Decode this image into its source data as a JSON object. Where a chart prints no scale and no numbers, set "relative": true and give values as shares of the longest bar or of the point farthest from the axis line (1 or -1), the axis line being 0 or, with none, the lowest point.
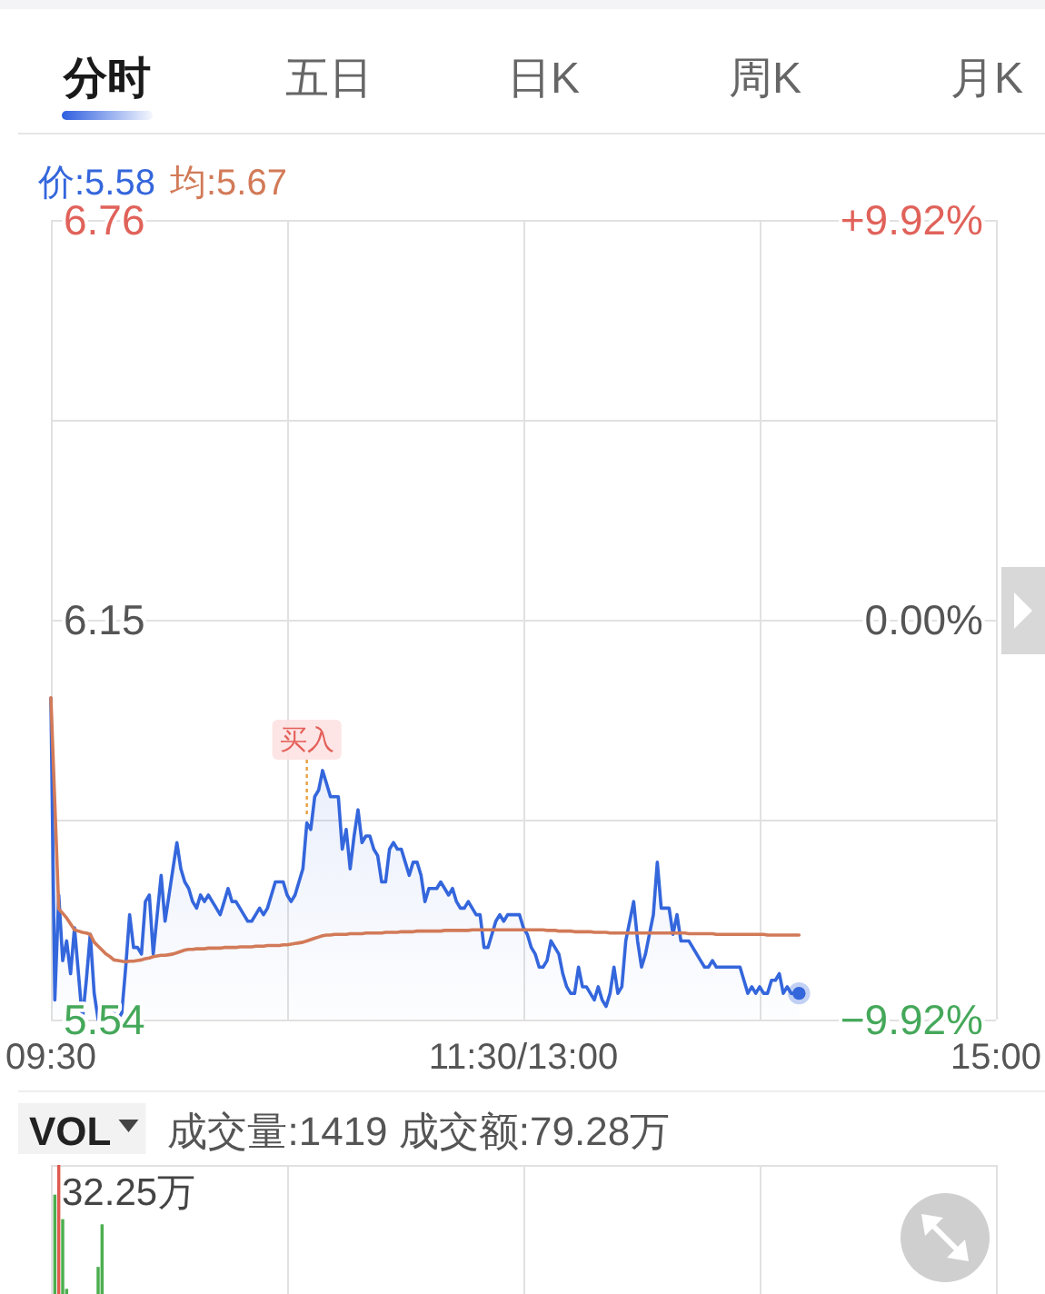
{
  "chart_data": [
    {
      "type": "line",
      "annotations": [
        "分时",
        "五日",
        "日K",
        "周K",
        "月K",
        {
          "text": "买入",
          "y": 5.84
        }
      ],
      "categories": [
        "09:30",
        null,
        null,
        null,
        null,
        null,
        null,
        null,
        null,
        null,
        null,
        null,
        null,
        null,
        null,
        null,
        null,
        null,
        null,
        null,
        null,
        null,
        null,
        null,
        null,
        null,
        null,
        null,
        null,
        null,
        null,
        null,
        null,
        null,
        null,
        null,
        null,
        null,
        null,
        null,
        null,
        null,
        null,
        null,
        null,
        null,
        null,
        null,
        null,
        null,
        null,
        null,
        null,
        null,
        null,
        null,
        null,
        null,
        null,
        null,
        null,
        null,
        null,
        null,
        null,
        null,
        null,
        null,
        null,
        null,
        null,
        null,
        null,
        null,
        null,
        null,
        null,
        null,
        null,
        null,
        null,
        null,
        null,
        null,
        null,
        null,
        null,
        null,
        null,
        null,
        null,
        null,
        null,
        null,
        null,
        null,
        null,
        null,
        null,
        null,
        null,
        null,
        null,
        null,
        null,
        null,
        null,
        null,
        null,
        null,
        null,
        null,
        null,
        null,
        null,
        null,
        null,
        null,
        null,
        null,
        "11:30/13:00",
        null,
        null,
        null,
        null,
        null,
        null,
        null,
        null,
        null,
        null,
        null,
        null,
        null,
        null,
        null,
        null,
        null,
        null,
        null,
        null,
        null,
        null,
        null,
        null,
        null,
        null,
        null,
        null,
        null,
        null,
        null,
        null,
        null,
        null,
        null,
        null,
        null,
        null,
        null,
        null,
        null,
        null,
        null,
        null,
        null,
        null,
        null,
        null,
        null,
        null,
        null,
        null,
        null,
        null,
        null,
        null,
        null,
        null,
        null,
        null,
        null,
        null,
        null,
        null,
        null,
        null,
        null,
        null,
        null,
        null,
        null,
        null,
        null,
        null,
        null,
        null,
        null,
        null,
        null,
        null,
        null,
        null,
        null,
        null,
        null,
        null,
        null,
        null,
        null,
        null,
        null,
        null,
        null,
        null,
        null,
        null,
        null,
        null,
        null,
        null,
        null,
        null,
        null,
        null,
        null,
        null,
        null,
        null,
        null,
        null,
        null,
        null,
        null,
        null,
        null,
        null,
        null,
        null,
        null,
        "15:00"
      ],
      "series": [
        {
          "name": "价:5.58",
          "type": "area",
          "color": "#3466dc",
          "values": [
            6.03,
            5.57,
            5.73,
            5.63,
            5.66,
            5.61,
            5.68,
            5.61,
            5.54,
            5.6,
            5.67,
            5.58,
            5.54,
            5.54,
            5.55,
            5.54,
            5.55,
            5.54,
            5.55,
            5.62,
            5.7,
            5.65,
            5.65,
            5.64,
            5.72,
            5.73,
            5.64,
            5.7,
            5.76,
            5.69,
            5.73,
            5.77,
            5.81,
            5.77,
            5.75,
            5.74,
            5.72,
            5.71,
            5.73,
            5.72,
            5.73,
            5.72,
            5.71,
            5.7,
            5.72,
            5.74,
            5.72,
            5.72,
            5.71,
            5.7,
            5.69,
            5.69,
            5.7,
            5.71,
            5.7,
            5.71,
            5.73,
            5.75,
            5.75,
            5.75,
            5.73,
            5.72,
            5.73,
            5.75,
            5.77,
            5.84,
            5.83,
            5.88,
            5.89,
            5.92,
            5.9,
            5.88,
            5.88,
            5.88,
            5.8,
            5.83,
            5.77,
            5.82,
            5.86,
            5.81,
            5.82,
            5.82,
            5.8,
            5.79,
            5.75,
            5.75,
            5.8,
            5.81,
            5.8,
            5.8,
            5.78,
            5.76,
            5.78,
            5.78,
            5.76,
            5.72,
            5.74,
            5.74,
            5.74,
            5.75,
            5.74,
            5.73,
            5.74,
            5.72,
            5.71,
            5.71,
            5.72,
            5.71,
            5.7,
            5.7,
            5.65,
            5.65,
            5.67,
            5.69,
            5.7,
            5.69,
            5.7,
            5.7,
            5.7,
            5.7,
            5.68,
            5.67,
            5.65,
            5.64,
            5.62,
            5.62,
            5.63,
            5.66,
            5.65,
            5.64,
            5.61,
            5.59,
            5.58,
            5.58,
            5.62,
            5.59,
            5.59,
            5.58,
            5.57,
            5.59,
            5.57,
            5.56,
            5.58,
            5.62,
            5.58,
            5.59,
            5.66,
            5.69,
            5.72,
            5.66,
            5.62,
            5.64,
            5.67,
            5.7,
            5.78,
            5.71,
            5.71,
            5.71,
            5.67,
            5.7,
            5.66,
            5.66,
            5.66,
            5.65,
            5.64,
            5.63,
            5.62,
            5.62,
            5.63,
            5.62,
            5.62,
            5.62,
            5.62,
            5.62,
            5.62,
            5.62,
            5.6,
            5.58,
            5.59,
            5.58,
            5.59,
            5.58,
            5.58,
            5.6,
            5.6,
            5.61,
            5.58,
            5.59,
            5.58,
            5.58,
            5.58,
            null,
            null,
            null,
            null,
            null,
            null,
            null,
            null,
            null,
            null,
            null,
            null,
            null,
            null,
            null,
            null,
            null,
            null,
            null,
            null,
            null,
            null,
            null,
            null,
            null,
            null,
            null,
            null,
            null,
            null,
            null,
            null,
            null,
            null,
            null,
            null,
            null,
            null,
            null,
            null,
            null,
            null,
            null,
            null,
            null,
            null,
            null,
            null,
            null,
            null
          ]
        },
        {
          "name": "均:5.67",
          "color": "#d27a58",
          "values": [
            6.031,
            5.87,
            5.709,
            5.702,
            5.695,
            5.686,
            5.677,
            5.675,
            5.673,
            5.672,
            5.67,
            5.658,
            5.652,
            5.646,
            5.64,
            5.636,
            5.631,
            5.63,
            5.629,
            5.628,
            5.629,
            5.629,
            5.63,
            5.631,
            5.633,
            5.634,
            5.636,
            5.637,
            5.638,
            5.638,
            5.639,
            5.64,
            5.642,
            5.644,
            5.646,
            5.647,
            5.647,
            5.648,
            5.648,
            5.648,
            5.649,
            5.649,
            5.649,
            5.649,
            5.65,
            5.65,
            5.65,
            5.65,
            5.651,
            5.651,
            5.651,
            5.651,
            5.652,
            5.652,
            5.652,
            5.653,
            5.653,
            5.653,
            5.653,
            5.654,
            5.654,
            5.655,
            5.656,
            5.657,
            5.658,
            5.66,
            5.662,
            5.664,
            5.666,
            5.668,
            5.669,
            5.669,
            5.67,
            5.67,
            5.67,
            5.67,
            5.671,
            5.671,
            5.671,
            5.671,
            5.672,
            5.672,
            5.672,
            5.672,
            5.672,
            5.673,
            5.673,
            5.673,
            5.673,
            5.674,
            5.674,
            5.674,
            5.674,
            5.675,
            5.675,
            5.675,
            5.675,
            5.675,
            5.675,
            5.675,
            5.676,
            5.676,
            5.676,
            5.676,
            5.676,
            5.676,
            5.676,
            5.677,
            5.677,
            5.677,
            5.677,
            5.677,
            5.677,
            5.677,
            5.677,
            5.677,
            5.677,
            5.677,
            5.677,
            5.677,
            5.677,
            5.677,
            5.677,
            5.677,
            5.677,
            5.677,
            5.676,
            5.676,
            5.676,
            5.675,
            5.675,
            5.675,
            5.675,
            5.674,
            5.674,
            5.674,
            5.674,
            5.674,
            5.673,
            5.673,
            5.673,
            5.673,
            5.672,
            5.672,
            5.672,
            5.672,
            5.672,
            5.672,
            5.672,
            5.672,
            5.672,
            5.672,
            5.672,
            5.672,
            5.672,
            5.672,
            5.672,
            5.672,
            5.672,
            5.672,
            5.672,
            5.672,
            5.671,
            5.671,
            5.671,
            5.671,
            5.671,
            5.671,
            5.671,
            5.67,
            5.67,
            5.67,
            5.67,
            5.67,
            5.67,
            5.67,
            5.67,
            5.67,
            5.67,
            5.67,
            5.67,
            5.67,
            5.669,
            5.669,
            5.669,
            5.669,
            5.669,
            5.669,
            5.669,
            5.669,
            5.669,
            null,
            null,
            null,
            null,
            null,
            null,
            null,
            null,
            null,
            null,
            null,
            null,
            null,
            null,
            null,
            null,
            null,
            null,
            null,
            null,
            null,
            null,
            null,
            null,
            null,
            null,
            null,
            null,
            null,
            null,
            null,
            null,
            null,
            null,
            null,
            null,
            null,
            null,
            null,
            null,
            null,
            null,
            null,
            null,
            null,
            null,
            null,
            null,
            null,
            null
          ]
        }
      ],
      "ylim": [
        5.54,
        6.76
      ],
      "yticks": [
        5.54,
        {
          "value": 5.845,
          "label": null
        },
        6.15,
        {
          "value": 6.455,
          "label": null
        },
        6.76
      ],
      "y2lim": [
        -9.92,
        9.92
      ],
      "y2ticks": [
        {
          "value": -9.92,
          "label": "−9.92%"
        },
        {
          "value": 0,
          "label": "0.00%"
        },
        {
          "value": 9.92,
          "label": "+9.92%"
        }
      ],
      "grid": true,
      "legend": "top left"
    },
    {
      "type": "bar",
      "title": "VOL",
      "subtitle": "成交量:1419 成交额:79.28万",
      "annotations": [
        "32.25万"
      ],
      "categories": [
        null,
        null,
        null,
        null,
        null,
        null,
        null,
        null,
        null,
        null,
        null,
        null,
        null,
        null,
        null,
        null,
        null,
        null,
        null,
        null,
        null,
        null,
        null,
        null,
        null,
        null,
        null,
        null,
        null,
        null,
        null,
        null,
        null,
        null,
        null,
        null,
        null,
        null,
        null,
        null,
        null,
        null,
        null,
        null,
        null,
        null,
        null,
        null,
        null,
        null,
        null,
        null,
        null,
        null,
        null,
        null,
        null,
        null,
        null,
        null,
        null,
        null,
        null,
        null,
        null,
        null,
        null,
        null,
        null,
        null,
        null,
        null,
        null,
        null,
        null,
        null,
        null,
        null,
        null,
        null,
        null,
        null,
        null,
        null,
        null,
        null,
        null,
        null,
        null,
        null,
        null,
        null,
        null,
        null,
        null,
        null,
        null,
        null,
        null,
        null,
        null,
        null,
        null,
        null,
        null,
        null,
        null,
        null,
        null,
        null,
        null,
        null,
        null,
        null,
        null,
        null,
        null,
        null,
        null,
        null,
        null,
        null,
        null,
        null,
        null,
        null,
        null,
        null,
        null,
        null,
        null,
        null,
        null,
        null,
        null,
        null,
        null,
        null,
        null,
        null,
        null,
        null,
        null,
        null,
        null,
        null,
        null,
        null,
        null,
        null,
        null,
        null,
        null,
        null,
        null,
        null,
        null,
        null,
        null,
        null,
        null,
        null,
        null,
        null,
        null,
        null,
        null,
        null,
        null,
        null,
        null,
        null,
        null,
        null,
        null,
        null,
        null,
        null,
        null,
        null,
        null,
        null,
        null,
        null,
        null,
        null,
        null,
        null,
        null,
        null,
        null,
        null,
        null,
        null,
        null,
        null,
        null,
        null,
        null,
        null,
        null,
        null,
        null,
        null,
        null,
        null,
        null,
        null,
        null,
        null,
        null,
        null,
        null,
        null,
        null,
        null,
        null,
        null,
        null,
        null,
        null,
        null,
        null,
        null,
        null,
        null,
        null,
        null,
        null,
        null,
        null,
        null,
        null,
        null,
        null,
        null,
        null,
        null,
        null,
        null,
        null
      ],
      "series": [
        {
          "color": "#4caf50",
          "values": [
            null,
            0.77,
            null,
            0.58,
            0.04,
            null,
            null,
            null,
            null,
            null,
            null,
            null,
            0.21,
            0.54,
            null,
            null,
            null,
            null,
            null,
            null,
            null,
            null,
            null,
            null,
            null,
            null,
            null,
            null,
            null,
            null,
            null,
            null,
            null,
            null,
            null,
            null,
            null,
            null,
            null,
            null,
            null,
            null,
            null,
            null,
            null,
            null,
            null,
            null,
            null,
            null,
            null,
            null,
            null,
            null,
            null,
            null,
            null,
            null,
            null,
            null,
            null,
            null,
            null,
            null,
            null,
            null,
            null,
            null,
            null,
            null,
            null,
            null,
            null,
            null,
            null,
            null,
            null,
            null,
            null,
            null,
            null,
            null,
            null,
            null,
            null,
            null,
            null,
            null,
            null,
            null,
            null,
            null,
            null,
            null,
            null,
            null,
            null,
            null,
            null,
            null,
            null,
            null,
            null,
            null,
            null,
            null,
            null,
            null,
            null,
            null,
            null,
            null,
            null,
            null,
            null,
            null,
            null,
            null,
            null,
            null,
            null,
            null,
            null,
            null,
            null,
            null,
            null,
            null,
            null,
            null,
            null,
            null,
            null,
            null,
            null,
            null,
            null,
            null,
            null,
            null,
            null,
            null,
            null,
            null,
            null,
            null,
            null,
            null,
            null,
            null,
            null,
            null,
            null,
            null,
            null,
            null,
            null,
            null,
            null,
            null,
            null,
            null,
            null,
            null,
            null,
            null,
            null,
            null,
            null,
            null,
            null,
            null,
            null,
            null,
            null,
            null,
            null,
            null,
            null,
            null,
            null,
            null,
            null,
            null,
            null,
            null,
            null,
            null,
            null,
            null,
            null,
            null,
            null,
            null,
            null,
            null,
            null,
            null,
            null,
            null,
            null,
            null,
            null,
            null,
            null,
            null,
            null,
            null,
            null,
            null,
            null,
            null,
            null,
            null,
            null,
            null,
            null,
            null,
            null,
            null,
            null,
            null,
            null,
            null,
            null,
            null,
            null,
            null,
            null,
            null,
            null,
            null,
            null,
            null,
            null,
            null,
            null,
            null,
            null,
            null,
            null
          ]
        },
        {
          "color": "#e05a4f",
          "values": [
            null,
            null,
            1,
            null,
            null,
            null,
            null,
            null,
            null,
            null,
            null,
            null,
            null,
            null,
            null,
            null,
            null,
            null,
            null,
            null,
            null,
            null,
            null,
            null,
            null,
            null,
            null,
            null,
            null,
            null,
            null,
            null,
            null,
            null,
            null,
            null,
            null,
            null,
            null,
            null,
            null,
            null,
            null,
            null,
            null,
            null,
            null,
            null,
            null,
            null,
            null,
            null,
            null,
            null,
            null,
            null,
            null,
            null,
            null,
            null,
            null,
            null,
            null,
            null,
            null,
            null,
            null,
            null,
            null,
            null,
            null,
            null,
            null,
            null,
            null,
            null,
            null,
            null,
            null,
            null,
            null,
            null,
            null,
            null,
            null,
            null,
            null,
            null,
            null,
            null,
            null,
            null,
            null,
            null,
            null,
            null,
            null,
            null,
            null,
            null,
            null,
            null,
            null,
            null,
            null,
            null,
            null,
            null,
            null,
            null,
            null,
            null,
            null,
            null,
            null,
            null,
            null,
            null,
            null,
            null,
            null,
            null,
            null,
            null,
            null,
            null,
            null,
            null,
            null,
            null,
            null,
            null,
            null,
            null,
            null,
            null,
            null,
            null,
            null,
            null,
            null,
            null,
            null,
            null,
            null,
            null,
            null,
            null,
            null,
            null,
            null,
            null,
            null,
            null,
            null,
            null,
            null,
            null,
            null,
            null,
            null,
            null,
            null,
            null,
            null,
            null,
            null,
            null,
            null,
            null,
            null,
            null,
            null,
            null,
            null,
            null,
            null,
            null,
            null,
            null,
            null,
            null,
            null,
            null,
            null,
            null,
            null,
            null,
            null,
            null,
            null,
            null,
            null,
            null,
            null,
            null,
            null,
            null,
            null,
            null,
            null,
            null,
            null,
            null,
            null,
            null,
            null,
            null,
            null,
            null,
            null,
            null,
            null,
            null,
            null,
            null,
            null,
            null,
            null,
            null,
            null,
            null,
            null,
            null,
            null,
            null,
            null,
            null,
            null,
            null,
            null,
            null,
            null,
            null,
            null,
            null,
            null,
            null,
            null,
            null,
            null
          ]
        }
      ],
      "stacked": true,
      "relative": true,
      "grid": "x"
    }
  ]
}
